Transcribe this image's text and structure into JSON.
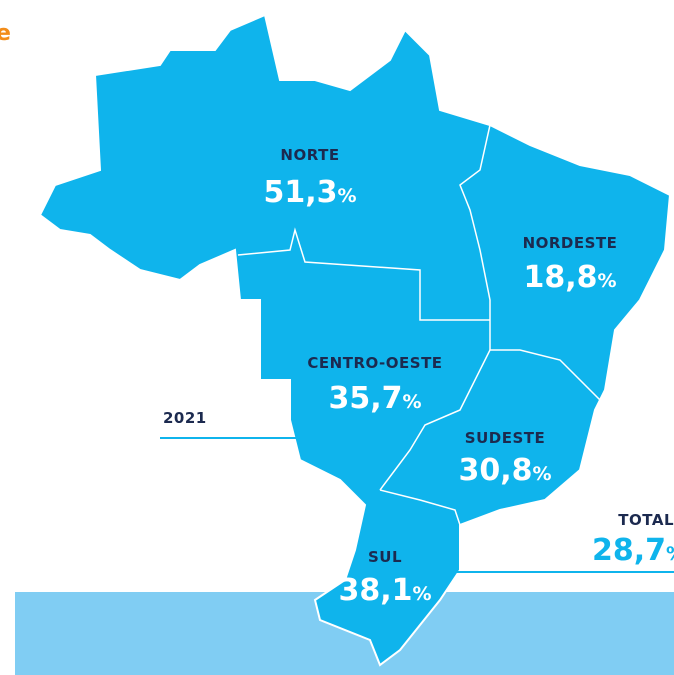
{
  "corner_mark": "e",
  "year": "2021",
  "regions": [
    {
      "name": "NORTE",
      "value": "51,3",
      "unit": "%"
    },
    {
      "name": "NORDESTE",
      "value": "18,8",
      "unit": "%"
    },
    {
      "name": "CENTRO-OESTE",
      "value": "35,7",
      "unit": "%"
    },
    {
      "name": "SUDESTE",
      "value": "30,8",
      "unit": "%"
    },
    {
      "name": "SUL",
      "value": "38,1",
      "unit": "%"
    }
  ],
  "total": {
    "name": "TOTAL",
    "value": "28,7",
    "unit": "%"
  }
}
